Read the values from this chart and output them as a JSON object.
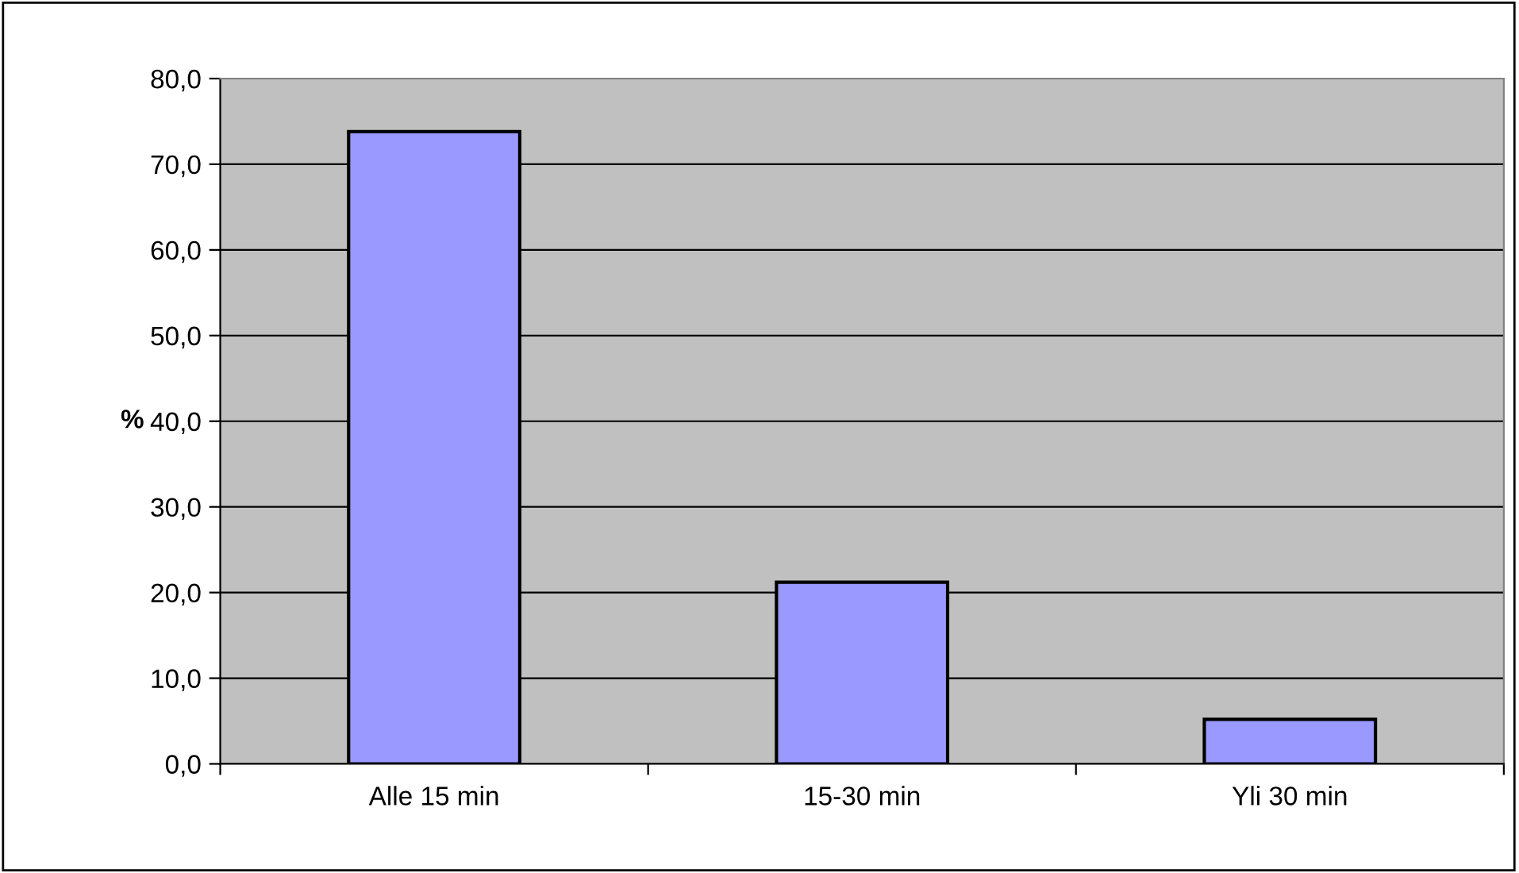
{
  "chart_data": {
    "type": "bar",
    "ylabel": "%",
    "categories": [
      "Alle 15 min",
      "15-30 min",
      "Yli 30 min"
    ],
    "series": [
      {
        "color": "#9999ff",
        "values": [
          73.8,
          21.2,
          5.2
        ]
      }
    ],
    "ylim": [
      0,
      80
    ],
    "yticks": [
      {
        "value": 0,
        "label": "0,0"
      },
      {
        "value": 10,
        "label": "10,0"
      },
      {
        "value": 20,
        "label": "20,0"
      },
      {
        "value": 30,
        "label": "30,0"
      },
      {
        "value": 40,
        "label": "40,0"
      },
      {
        "value": 50,
        "label": "50,0"
      },
      {
        "value": 60,
        "label": "60,0"
      },
      {
        "value": 70,
        "label": "70,0"
      },
      {
        "value": 80,
        "label": "80,0"
      }
    ],
    "grid": "y",
    "legend": false
  }
}
